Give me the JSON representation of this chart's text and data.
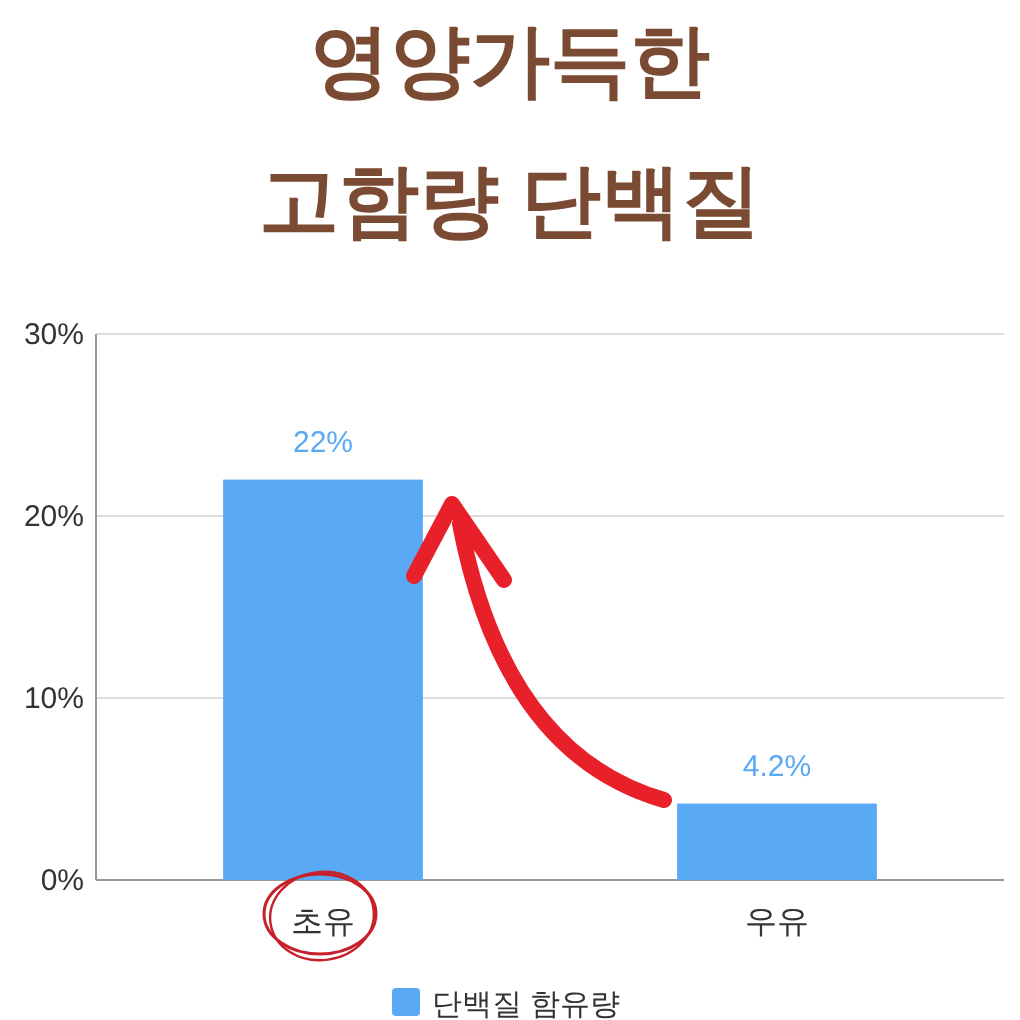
{
  "chart_data": {
    "type": "bar",
    "title": "영양가득한\n고함량 단백질",
    "categories": [
      "초유",
      "우유"
    ],
    "series": [
      {
        "name": "단백질 함유량",
        "color": "#5aa9f5",
        "values": [
          22,
          4.2
        ],
        "value_labels": [
          "22%",
          "4.2%"
        ]
      }
    ],
    "ylim": [
      0,
      30
    ],
    "yticks": [
      {
        "value": 0,
        "label": "0%"
      },
      {
        "value": 10,
        "label": "10%"
      },
      {
        "value": 20,
        "label": "20%"
      },
      {
        "value": 30,
        "label": "30%"
      }
    ],
    "grid": "y",
    "legend": "bottom"
  }
}
